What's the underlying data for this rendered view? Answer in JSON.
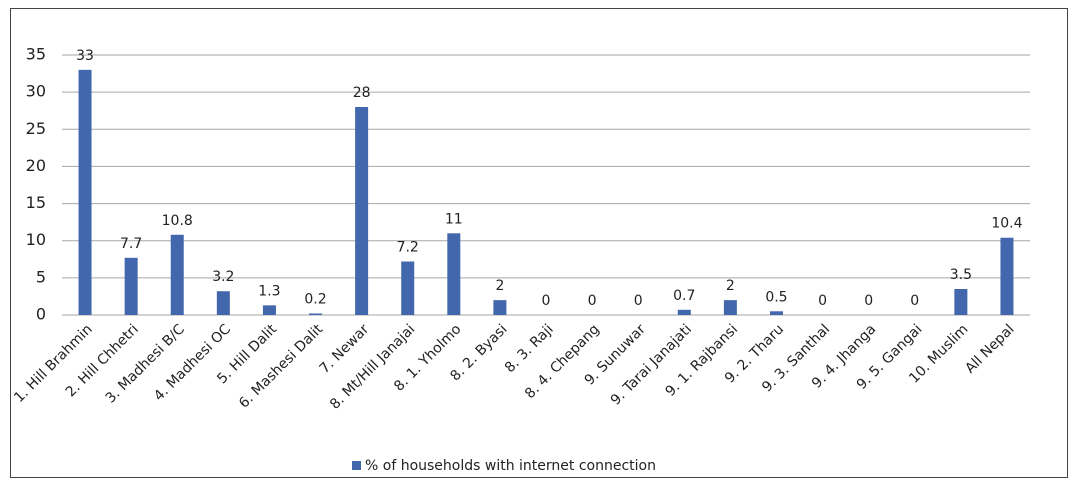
{
  "chart_data": {
    "type": "bar",
    "categories": [
      "1. Hill Brahmin",
      "2. Hill Chhetri",
      "3. Madhesi B/C",
      "4. Madhesi OC",
      "5. Hill Dalit",
      "6. Mashesi Dalit",
      "7. Newar",
      "8. Mt/Hill Janajai",
      "8. 1. Yholmo",
      "8. 2. Byasi",
      "8. 3. Raji",
      "8. 4. Chepang",
      "9. Sunuwar",
      "9. Tarai Janajati",
      "9. 1. Rajbansi",
      "9. 2. Tharu",
      "9. 3. Santhal",
      "9. 4. Jhanga",
      "9. 5. Gangai",
      "10. Muslim",
      "All Nepal"
    ],
    "series": [
      {
        "name": "% of households with internet connection",
        "color": "#4267ac",
        "values": [
          33,
          7.7,
          10.8,
          3.2,
          1.3,
          0.2,
          28,
          7.2,
          11,
          2,
          0,
          0,
          0,
          0.7,
          2,
          0.5,
          0,
          0,
          0,
          3.5,
          10.4
        ]
      }
    ],
    "ylim": [
      0,
      35
    ],
    "yticks": [
      0,
      5,
      10,
      15,
      20,
      25,
      30,
      35
    ],
    "grid": true,
    "legend": "bottom"
  }
}
